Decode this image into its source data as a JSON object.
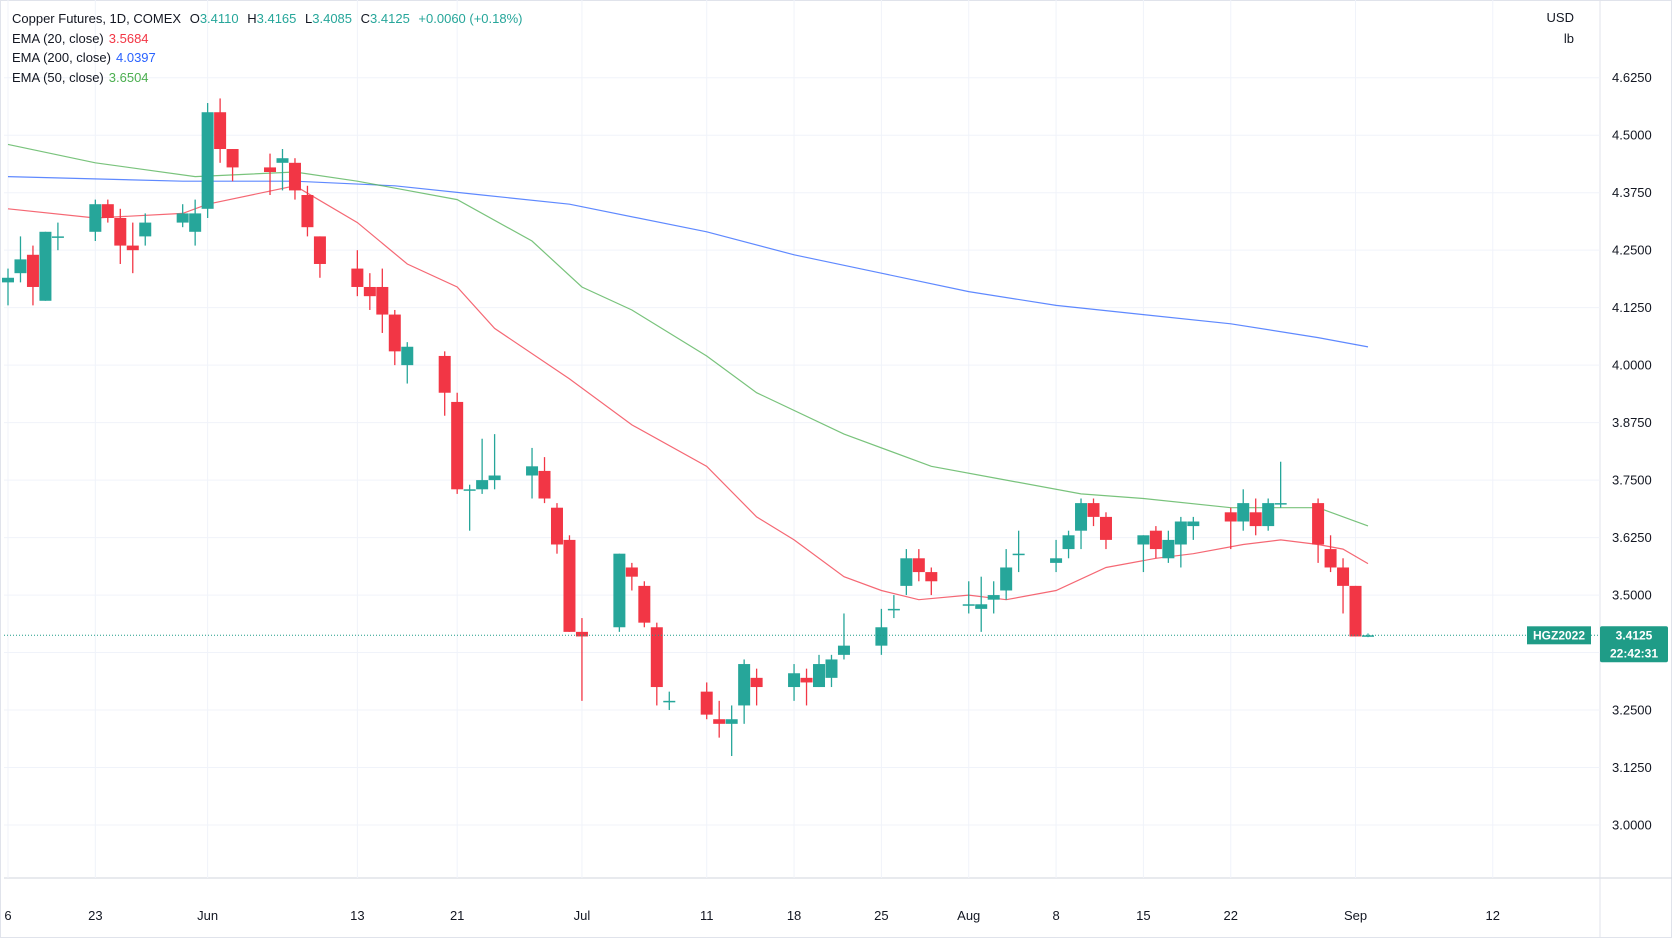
{
  "header": {
    "symbol_line": "Copper Futures, 1D, COMEX",
    "ohlc": [
      {
        "label": "O",
        "value": "3.4110"
      },
      {
        "label": "H",
        "value": "3.4165"
      },
      {
        "label": "L",
        "value": "3.4085"
      },
      {
        "label": "C",
        "value": "3.4125"
      }
    ],
    "change": "+0.0060 (+0.18%)",
    "indicators": [
      {
        "label": "EMA (20, close)",
        "value": "3.5684",
        "color": "#f23645"
      },
      {
        "label": "EMA (200, close)",
        "value": "4.0397",
        "color": "#2962ff"
      },
      {
        "label": "EMA (50, close)",
        "value": "3.6504",
        "color": "#4caf50"
      }
    ]
  },
  "axis": {
    "currency": "USD",
    "unit": "lb",
    "y_ticks": [
      "4.6250",
      "4.5000",
      "4.3750",
      "4.2500",
      "4.1250",
      "4.0000",
      "3.8750",
      "3.7500",
      "3.6250",
      "3.5000",
      "3.3750",
      "3.2500",
      "3.1250",
      "3.0000"
    ],
    "x_ticks": [
      {
        "label": "6",
        "date": "2022-05-16"
      },
      {
        "label": "23",
        "date": "2022-05-23"
      },
      {
        "label": "Jun",
        "date": "2022-06-01"
      },
      {
        "label": "13",
        "date": "2022-06-13"
      },
      {
        "label": "21",
        "date": "2022-06-21"
      },
      {
        "label": "Jul",
        "date": "2022-07-01"
      },
      {
        "label": "11",
        "date": "2022-07-11"
      },
      {
        "label": "18",
        "date": "2022-07-18"
      },
      {
        "label": "25",
        "date": "2022-07-25"
      },
      {
        "label": "Aug",
        "date": "2022-08-01"
      },
      {
        "label": "8",
        "date": "2022-08-08"
      },
      {
        "label": "15",
        "date": "2022-08-15"
      },
      {
        "label": "22",
        "date": "2022-08-22"
      },
      {
        "label": "Sep",
        "date": "2022-09-01"
      },
      {
        "label": "12",
        "date": "2022-09-12"
      }
    ]
  },
  "price_tag": {
    "symbol": "HGZ2022",
    "price": "3.4125",
    "countdown": "22:42:31"
  },
  "colors": {
    "up": "#26a69a",
    "down": "#f23645",
    "ema20": "#f23645",
    "ema200": "#2962ff",
    "ema50": "#4caf50",
    "grid": "#f0f3fa",
    "tag_bg": "#1f9c87"
  },
  "chart_data": {
    "type": "candlestick",
    "title": "Copper Futures, 1D, COMEX",
    "ylabel": "USD / lb",
    "ylim": [
      2.96,
      4.71
    ],
    "xlim": [
      "2022-05-16",
      "2022-09-14"
    ],
    "grid": true,
    "candles": [
      {
        "date": "2022-05-16",
        "o": 4.18,
        "h": 4.21,
        "l": 4.13,
        "c": 4.19
      },
      {
        "date": "2022-05-17",
        "o": 4.2,
        "h": 4.28,
        "l": 4.18,
        "c": 4.23
      },
      {
        "date": "2022-05-18",
        "o": 4.24,
        "h": 4.26,
        "l": 4.13,
        "c": 4.17
      },
      {
        "date": "2022-05-19",
        "o": 4.14,
        "h": 4.29,
        "l": 4.14,
        "c": 4.29
      },
      {
        "date": "2022-05-20",
        "o": 4.28,
        "h": 4.31,
        "l": 4.25,
        "c": 4.28
      },
      {
        "date": "2022-05-23",
        "o": 4.29,
        "h": 4.36,
        "l": 4.27,
        "c": 4.35
      },
      {
        "date": "2022-05-24",
        "o": 4.35,
        "h": 4.36,
        "l": 4.31,
        "c": 4.32
      },
      {
        "date": "2022-05-25",
        "o": 4.32,
        "h": 4.34,
        "l": 4.22,
        "c": 4.26
      },
      {
        "date": "2022-05-26",
        "o": 4.26,
        "h": 4.31,
        "l": 4.2,
        "c": 4.25
      },
      {
        "date": "2022-05-27",
        "o": 4.28,
        "h": 4.33,
        "l": 4.26,
        "c": 4.31
      },
      {
        "date": "2022-05-30",
        "o": 4.31,
        "h": 4.35,
        "l": 4.3,
        "c": 4.33
      },
      {
        "date": "2022-05-31",
        "o": 4.29,
        "h": 4.36,
        "l": 4.26,
        "c": 4.33
      },
      {
        "date": "2022-06-01",
        "o": 4.34,
        "h": 4.57,
        "l": 4.32,
        "c": 4.55
      },
      {
        "date": "2022-06-02",
        "o": 4.55,
        "h": 4.58,
        "l": 4.44,
        "c": 4.47
      },
      {
        "date": "2022-06-03",
        "o": 4.47,
        "h": 4.47,
        "l": 4.4,
        "c": 4.43
      },
      {
        "date": "2022-06-06",
        "o": 4.43,
        "h": 4.46,
        "l": 4.37,
        "c": 4.42
      },
      {
        "date": "2022-06-07",
        "o": 4.44,
        "h": 4.47,
        "l": 4.38,
        "c": 4.45
      },
      {
        "date": "2022-06-08",
        "o": 4.44,
        "h": 4.45,
        "l": 4.36,
        "c": 4.38
      },
      {
        "date": "2022-06-09",
        "o": 4.37,
        "h": 4.39,
        "l": 4.28,
        "c": 4.3
      },
      {
        "date": "2022-06-10",
        "o": 4.28,
        "h": 4.28,
        "l": 4.19,
        "c": 4.22
      },
      {
        "date": "2022-06-13",
        "o": 4.21,
        "h": 4.25,
        "l": 4.15,
        "c": 4.17
      },
      {
        "date": "2022-06-14",
        "o": 4.17,
        "h": 4.2,
        "l": 4.12,
        "c": 4.15
      },
      {
        "date": "2022-06-15",
        "o": 4.17,
        "h": 4.21,
        "l": 4.07,
        "c": 4.11
      },
      {
        "date": "2022-06-16",
        "o": 4.11,
        "h": 4.12,
        "l": 4.0,
        "c": 4.03
      },
      {
        "date": "2022-06-17",
        "o": 4.0,
        "h": 4.05,
        "l": 3.96,
        "c": 4.04
      },
      {
        "date": "2022-06-20",
        "o": 4.02,
        "h": 4.03,
        "l": 3.89,
        "c": 3.94
      },
      {
        "date": "2022-06-21",
        "o": 3.92,
        "h": 3.94,
        "l": 3.72,
        "c": 3.73
      },
      {
        "date": "2022-06-22",
        "o": 3.73,
        "h": 3.74,
        "l": 3.64,
        "c": 3.73
      },
      {
        "date": "2022-06-23",
        "o": 3.73,
        "h": 3.84,
        "l": 3.72,
        "c": 3.75
      },
      {
        "date": "2022-06-24",
        "o": 3.75,
        "h": 3.85,
        "l": 3.73,
        "c": 3.76
      },
      {
        "date": "2022-06-27",
        "o": 3.76,
        "h": 3.82,
        "l": 3.71,
        "c": 3.78
      },
      {
        "date": "2022-06-28",
        "o": 3.77,
        "h": 3.8,
        "l": 3.7,
        "c": 3.71
      },
      {
        "date": "2022-06-29",
        "o": 3.69,
        "h": 3.7,
        "l": 3.59,
        "c": 3.61
      },
      {
        "date": "2022-06-30",
        "o": 3.62,
        "h": 3.63,
        "l": 3.42,
        "c": 3.42
      },
      {
        "date": "2022-07-01",
        "o": 3.42,
        "h": 3.45,
        "l": 3.27,
        "c": 3.41
      },
      {
        "date": "2022-07-04",
        "o": 3.43,
        "h": 3.59,
        "l": 3.42,
        "c": 3.59
      },
      {
        "date": "2022-07-05",
        "o": 3.56,
        "h": 3.57,
        "l": 3.51,
        "c": 3.54
      },
      {
        "date": "2022-07-06",
        "o": 3.52,
        "h": 3.53,
        "l": 3.43,
        "c": 3.44
      },
      {
        "date": "2022-07-07",
        "o": 3.43,
        "h": 3.44,
        "l": 3.26,
        "c": 3.3
      },
      {
        "date": "2022-07-08",
        "o": 3.27,
        "h": 3.29,
        "l": 3.25,
        "c": 3.27
      },
      {
        "date": "2022-07-11",
        "o": 3.29,
        "h": 3.31,
        "l": 3.23,
        "c": 3.24
      },
      {
        "date": "2022-07-12",
        "o": 3.23,
        "h": 3.27,
        "l": 3.19,
        "c": 3.22
      },
      {
        "date": "2022-07-13",
        "o": 3.22,
        "h": 3.26,
        "l": 3.15,
        "c": 3.23
      },
      {
        "date": "2022-07-14",
        "o": 3.26,
        "h": 3.36,
        "l": 3.22,
        "c": 3.35
      },
      {
        "date": "2022-07-15",
        "o": 3.32,
        "h": 3.34,
        "l": 3.26,
        "c": 3.3
      },
      {
        "date": "2022-07-18",
        "o": 3.3,
        "h": 3.35,
        "l": 3.27,
        "c": 3.33
      },
      {
        "date": "2022-07-19",
        "o": 3.32,
        "h": 3.34,
        "l": 3.26,
        "c": 3.31
      },
      {
        "date": "2022-07-20",
        "o": 3.3,
        "h": 3.37,
        "l": 3.3,
        "c": 3.35
      },
      {
        "date": "2022-07-21",
        "o": 3.32,
        "h": 3.37,
        "l": 3.3,
        "c": 3.36
      },
      {
        "date": "2022-07-22",
        "o": 3.37,
        "h": 3.46,
        "l": 3.36,
        "c": 3.39
      },
      {
        "date": "2022-07-25",
        "o": 3.39,
        "h": 3.47,
        "l": 3.37,
        "c": 3.43
      },
      {
        "date": "2022-07-26",
        "o": 3.47,
        "h": 3.5,
        "l": 3.45,
        "c": 3.47
      },
      {
        "date": "2022-07-27",
        "o": 3.52,
        "h": 3.6,
        "l": 3.5,
        "c": 3.58
      },
      {
        "date": "2022-07-28",
        "o": 3.58,
        "h": 3.6,
        "l": 3.53,
        "c": 3.55
      },
      {
        "date": "2022-07-29",
        "o": 3.55,
        "h": 3.56,
        "l": 3.5,
        "c": 3.53
      },
      {
        "date": "2022-08-01",
        "o": 3.48,
        "h": 3.53,
        "l": 3.46,
        "c": 3.48
      },
      {
        "date": "2022-08-02",
        "o": 3.47,
        "h": 3.54,
        "l": 3.42,
        "c": 3.48
      },
      {
        "date": "2022-08-03",
        "o": 3.49,
        "h": 3.53,
        "l": 3.46,
        "c": 3.5
      },
      {
        "date": "2022-08-04",
        "o": 3.51,
        "h": 3.6,
        "l": 3.49,
        "c": 3.56
      },
      {
        "date": "2022-08-05",
        "o": 3.59,
        "h": 3.64,
        "l": 3.55,
        "c": 3.59
      },
      {
        "date": "2022-08-08",
        "o": 3.57,
        "h": 3.62,
        "l": 3.55,
        "c": 3.58
      },
      {
        "date": "2022-08-09",
        "o": 3.6,
        "h": 3.64,
        "l": 3.58,
        "c": 3.63
      },
      {
        "date": "2022-08-10",
        "o": 3.64,
        "h": 3.71,
        "l": 3.6,
        "c": 3.7
      },
      {
        "date": "2022-08-11",
        "o": 3.7,
        "h": 3.71,
        "l": 3.65,
        "c": 3.67
      },
      {
        "date": "2022-08-12",
        "o": 3.67,
        "h": 3.68,
        "l": 3.6,
        "c": 3.62
      },
      {
        "date": "2022-08-15",
        "o": 3.61,
        "h": 3.63,
        "l": 3.55,
        "c": 3.63
      },
      {
        "date": "2022-08-16",
        "o": 3.64,
        "h": 3.65,
        "l": 3.58,
        "c": 3.6
      },
      {
        "date": "2022-08-17",
        "o": 3.58,
        "h": 3.64,
        "l": 3.57,
        "c": 3.62
      },
      {
        "date": "2022-08-18",
        "o": 3.61,
        "h": 3.67,
        "l": 3.56,
        "c": 3.66
      },
      {
        "date": "2022-08-19",
        "o": 3.65,
        "h": 3.67,
        "l": 3.62,
        "c": 3.66
      },
      {
        "date": "2022-08-22",
        "o": 3.68,
        "h": 3.69,
        "l": 3.6,
        "c": 3.66
      },
      {
        "date": "2022-08-23",
        "o": 3.66,
        "h": 3.73,
        "l": 3.64,
        "c": 3.7
      },
      {
        "date": "2022-08-24",
        "o": 3.68,
        "h": 3.71,
        "l": 3.63,
        "c": 3.65
      },
      {
        "date": "2022-08-25",
        "o": 3.65,
        "h": 3.71,
        "l": 3.64,
        "c": 3.7
      },
      {
        "date": "2022-08-26",
        "o": 3.7,
        "h": 3.79,
        "l": 3.69,
        "c": 3.7
      },
      {
        "date": "2022-08-29",
        "o": 3.7,
        "h": 3.71,
        "l": 3.57,
        "c": 3.61
      },
      {
        "date": "2022-08-30",
        "o": 3.6,
        "h": 3.63,
        "l": 3.55,
        "c": 3.56
      },
      {
        "date": "2022-08-31",
        "o": 3.56,
        "h": 3.58,
        "l": 3.46,
        "c": 3.52
      },
      {
        "date": "2022-09-01",
        "o": 3.52,
        "h": 3.52,
        "l": 3.41,
        "c": 3.41
      },
      {
        "date": "2022-09-02",
        "o": 3.411,
        "h": 3.4165,
        "l": 3.4085,
        "c": 3.4125
      }
    ],
    "series": [
      {
        "name": "EMA (20, close)",
        "color": "#f23645",
        "points": [
          [
            "2022-05-16",
            4.34
          ],
          [
            "2022-05-23",
            4.32
          ],
          [
            "2022-05-30",
            4.33
          ],
          [
            "2022-06-01",
            4.35
          ],
          [
            "2022-06-08",
            4.39
          ],
          [
            "2022-06-13",
            4.31
          ],
          [
            "2022-06-17",
            4.22
          ],
          [
            "2022-06-21",
            4.17
          ],
          [
            "2022-06-24",
            4.08
          ],
          [
            "2022-06-30",
            3.97
          ],
          [
            "2022-07-05",
            3.87
          ],
          [
            "2022-07-11",
            3.78
          ],
          [
            "2022-07-15",
            3.67
          ],
          [
            "2022-07-18",
            3.62
          ],
          [
            "2022-07-22",
            3.54
          ],
          [
            "2022-07-25",
            3.51
          ],
          [
            "2022-07-28",
            3.49
          ],
          [
            "2022-08-01",
            3.5
          ],
          [
            "2022-08-04",
            3.49
          ],
          [
            "2022-08-08",
            3.51
          ],
          [
            "2022-08-12",
            3.56
          ],
          [
            "2022-08-16",
            3.58
          ],
          [
            "2022-08-19",
            3.59
          ],
          [
            "2022-08-23",
            3.61
          ],
          [
            "2022-08-26",
            3.62
          ],
          [
            "2022-08-29",
            3.61
          ],
          [
            "2022-08-31",
            3.6
          ],
          [
            "2022-09-02",
            3.5684
          ]
        ]
      },
      {
        "name": "EMA (200, close)",
        "color": "#2962ff",
        "points": [
          [
            "2022-05-16",
            4.41
          ],
          [
            "2022-05-30",
            4.4
          ],
          [
            "2022-06-08",
            4.4
          ],
          [
            "2022-06-16",
            4.39
          ],
          [
            "2022-06-23",
            4.37
          ],
          [
            "2022-06-30",
            4.35
          ],
          [
            "2022-07-11",
            4.29
          ],
          [
            "2022-07-18",
            4.24
          ],
          [
            "2022-07-25",
            4.2
          ],
          [
            "2022-08-01",
            4.16
          ],
          [
            "2022-08-08",
            4.13
          ],
          [
            "2022-08-15",
            4.11
          ],
          [
            "2022-08-22",
            4.09
          ],
          [
            "2022-08-29",
            4.06
          ],
          [
            "2022-09-02",
            4.0397
          ]
        ]
      },
      {
        "name": "EMA (50, close)",
        "color": "#4caf50",
        "points": [
          [
            "2022-05-16",
            4.48
          ],
          [
            "2022-05-23",
            4.44
          ],
          [
            "2022-05-31",
            4.41
          ],
          [
            "2022-06-08",
            4.42
          ],
          [
            "2022-06-13",
            4.4
          ],
          [
            "2022-06-21",
            4.36
          ],
          [
            "2022-06-27",
            4.27
          ],
          [
            "2022-07-01",
            4.17
          ],
          [
            "2022-07-05",
            4.12
          ],
          [
            "2022-07-11",
            4.02
          ],
          [
            "2022-07-15",
            3.94
          ],
          [
            "2022-07-22",
            3.85
          ],
          [
            "2022-07-29",
            3.78
          ],
          [
            "2022-08-04",
            3.75
          ],
          [
            "2022-08-10",
            3.72
          ],
          [
            "2022-08-15",
            3.71
          ],
          [
            "2022-08-22",
            3.69
          ],
          [
            "2022-08-29",
            3.69
          ],
          [
            "2022-09-02",
            3.6504
          ]
        ]
      }
    ]
  }
}
